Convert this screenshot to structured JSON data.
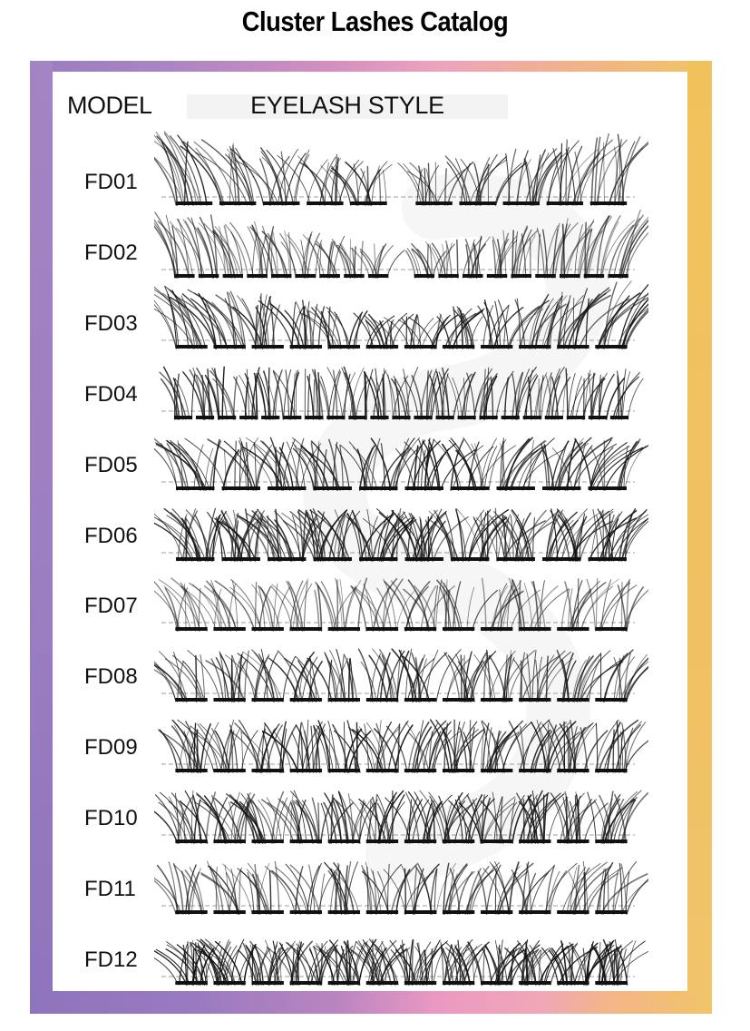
{
  "title": "Cluster Lashes Catalog",
  "colors": {
    "frame_purple": "#9c7ec2",
    "frame_pink": "#ec9ac0",
    "frame_peach": "#f4b48a",
    "frame_yellow": "#f0c460",
    "lash_ink": "#111111",
    "header_box": "#f3f3f3"
  },
  "table": {
    "header": {
      "model": "MODEL",
      "style": "EYELASH STYLE"
    },
    "rows": [
      {
        "model": "FD01",
        "clusters": 10,
        "split": true,
        "density": 14,
        "profile": "outer-long",
        "shade": 0.85,
        "lean": 0.9
      },
      {
        "model": "FD02",
        "clusters": 18,
        "split": true,
        "density": 9,
        "profile": "outer-long",
        "shade": 0.75,
        "lean": 0.7
      },
      {
        "model": "FD03",
        "clusters": 12,
        "split": false,
        "density": 14,
        "profile": "outer-long",
        "shade": 0.95,
        "lean": 1.3
      },
      {
        "model": "FD04",
        "clusters": 21,
        "split": false,
        "density": 8,
        "profile": "flat",
        "shade": 0.95,
        "lean": 0.5
      },
      {
        "model": "FD05",
        "clusters": 10,
        "split": false,
        "density": 16,
        "profile": "flat",
        "shade": 0.95,
        "lean": 0.8
      },
      {
        "model": "FD06",
        "clusters": 10,
        "split": false,
        "density": 22,
        "profile": "flat",
        "shade": 1.0,
        "lean": 0.8
      },
      {
        "model": "FD07",
        "clusters": 12,
        "split": false,
        "density": 11,
        "profile": "flat",
        "shade": 0.7,
        "lean": 0.8
      },
      {
        "model": "FD08",
        "clusters": 12,
        "split": false,
        "density": 13,
        "profile": "flat",
        "shade": 0.9,
        "lean": 0.8
      },
      {
        "model": "FD09",
        "clusters": 12,
        "split": false,
        "density": 15,
        "profile": "flat",
        "shade": 0.95,
        "lean": 0.6
      },
      {
        "model": "FD10",
        "clusters": 12,
        "split": false,
        "density": 16,
        "profile": "flat",
        "shade": 0.95,
        "lean": 0.5
      },
      {
        "model": "FD11",
        "clusters": 12,
        "split": false,
        "density": 12,
        "profile": "flat",
        "shade": 0.85,
        "lean": 0.8
      },
      {
        "model": "FD12",
        "clusters": 12,
        "split": false,
        "density": 22,
        "profile": "short-dense",
        "shade": 1.0,
        "lean": 0.6
      }
    ]
  }
}
